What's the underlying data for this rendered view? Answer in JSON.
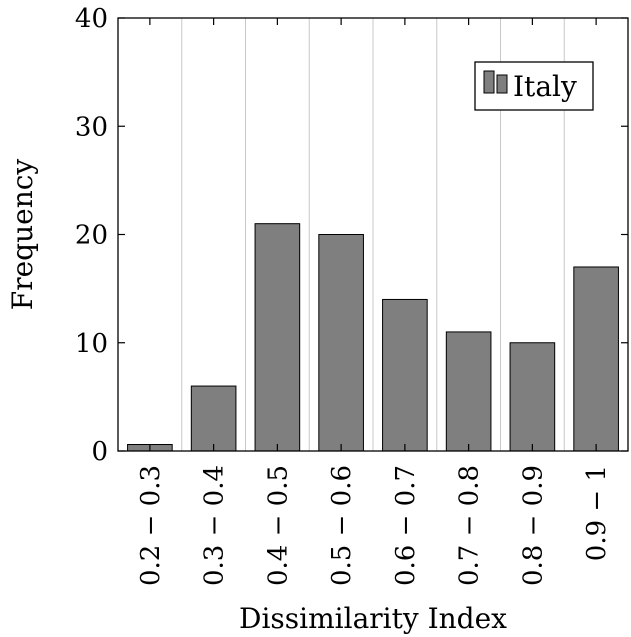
{
  "chart_data": {
    "type": "bar",
    "categories": [
      "0.2 − 0.3",
      "0.3 − 0.4",
      "0.4 − 0.5",
      "0.5 − 0.6",
      "0.6 − 0.7",
      "0.7 − 0.8",
      "0.8 − 0.9",
      "0.9 − 1"
    ],
    "series": [
      {
        "name": "Italy",
        "values": [
          0.6,
          6,
          21,
          20,
          14,
          11,
          10,
          17
        ],
        "color": "#7f7f7f"
      }
    ],
    "title": "",
    "xlabel": "Dissimilarity Index",
    "ylabel": "Frequency",
    "ylim": [
      0,
      40
    ],
    "yticks": [
      0,
      10,
      20,
      30,
      40
    ],
    "grid": "vertical",
    "legend_position": "top-right"
  }
}
